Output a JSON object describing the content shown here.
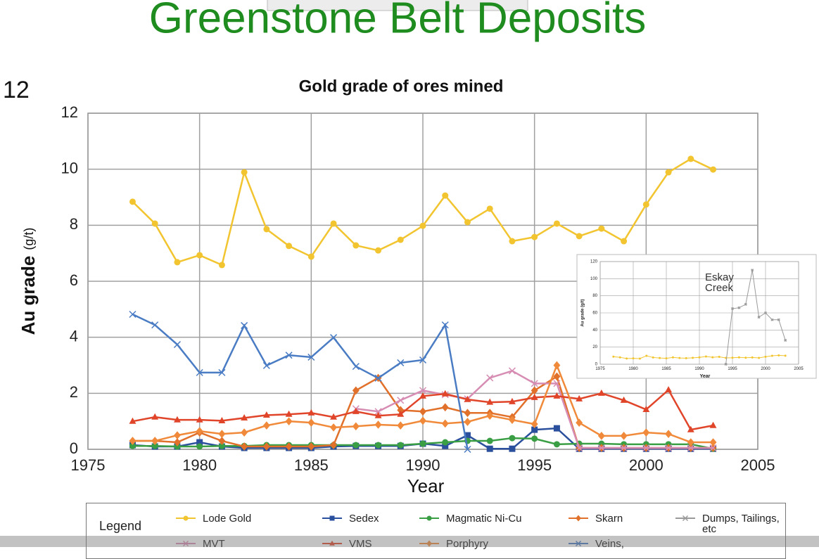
{
  "slide": {
    "title": "Greenstone Belt Deposits",
    "page_number": "12"
  },
  "chart_data": [
    {
      "type": "line",
      "title": "Gold grade of ores mined",
      "xlabel": "Year",
      "ylabel": "Au grade",
      "ylabel_unit": "(g/t)",
      "legend_title": "Legend",
      "legend_position": "bottom",
      "grid": true,
      "xlim": [
        1975,
        2005
      ],
      "xticks": [
        1975,
        1980,
        1985,
        1990,
        1995,
        2000,
        2005
      ],
      "ylim": [
        0,
        12
      ],
      "yticks": [
        0,
        2,
        4,
        6,
        8,
        10,
        12
      ],
      "x": [
        1977,
        1978,
        1979,
        1980,
        1981,
        1982,
        1983,
        1984,
        1985,
        1986,
        1987,
        1988,
        1989,
        1990,
        1991,
        1992,
        1993,
        1994,
        1995,
        1996,
        1997,
        1998,
        1999,
        2000,
        2001,
        2002,
        2003
      ],
      "series": [
        {
          "name": "Lode Gold",
          "color": "#f2c530",
          "marker": "circle",
          "values": [
            8.84,
            8.06,
            6.68,
            6.93,
            6.58,
            9.89,
            7.86,
            7.26,
            6.88,
            8.06,
            7.28,
            7.1,
            7.48,
            7.98,
            9.06,
            8.11,
            8.59,
            7.43,
            7.58,
            8.06,
            7.61,
            7.88,
            7.43,
            8.74,
            9.89,
            10.37,
            9.99
          ]
        },
        {
          "name": "Sedex",
          "color": "#2a4f9c",
          "marker": "square",
          "values": [
            0.15,
            0.1,
            0.1,
            0.25,
            0.1,
            0.05,
            0.05,
            0.05,
            0.05,
            0.1,
            0.12,
            0.12,
            0.12,
            0.2,
            0.12,
            0.5,
            0.02,
            0.02,
            0.7,
            0.75,
            0.02,
            0.02,
            0.02,
            0.02,
            0.02,
            0.02,
            0.02
          ]
        },
        {
          "name": "Magmatic Ni-Cu",
          "color": "#3a9e44",
          "marker": "circle",
          "values": [
            0.12,
            0.12,
            0.1,
            0.1,
            0.12,
            0.12,
            0.15,
            0.15,
            0.15,
            0.15,
            0.15,
            0.15,
            0.15,
            0.2,
            0.25,
            0.3,
            0.3,
            0.4,
            0.38,
            0.18,
            0.2,
            0.2,
            0.18,
            0.18,
            0.18,
            0.18,
            0.02
          ]
        },
        {
          "name": "Skarn",
          "color": "#e0702a",
          "marker": "diamond",
          "values": [
            0.3,
            0.3,
            0.25,
            0.6,
            0.3,
            0.1,
            0.1,
            0.1,
            0.1,
            0.15,
            2.1,
            2.55,
            1.4,
            1.35,
            1.5,
            1.3,
            1.3,
            1.15,
            2.1,
            2.6,
            0.05,
            0.05,
            0.05,
            0.05,
            0.05,
            0.05,
            0.05
          ]
        },
        {
          "name": "Dumps, Tailings, etc",
          "color": "#9a9a9a",
          "marker": "x",
          "values": [
            null,
            null,
            null,
            null,
            null,
            null,
            null,
            null,
            null,
            null,
            null,
            null,
            null,
            null,
            null,
            null,
            null,
            null,
            null,
            null,
            null,
            null,
            null,
            null,
            null,
            null,
            null
          ]
        },
        {
          "name": "MVT",
          "color": "#d78db3",
          "marker": "x",
          "values": [
            null,
            null,
            null,
            null,
            null,
            null,
            null,
            null,
            null,
            null,
            1.45,
            1.35,
            1.75,
            2.1,
            1.95,
            1.8,
            2.55,
            2.8,
            2.35,
            2.35,
            0.05,
            0.05,
            0.05,
            0.05,
            0.05,
            0.05,
            0.05
          ]
        },
        {
          "name": "VMS",
          "color": "#e0452a",
          "marker": "triangle",
          "values": [
            1.0,
            1.15,
            1.05,
            1.05,
            1.02,
            1.12,
            1.22,
            1.25,
            1.3,
            1.15,
            1.35,
            1.2,
            1.25,
            1.9,
            1.98,
            1.78,
            1.68,
            1.7,
            1.85,
            1.9,
            1.8,
            2.0,
            1.75,
            1.42,
            2.12,
            0.7,
            0.85
          ]
        },
        {
          "name": "Porphyry",
          "color": "#f08a3a",
          "marker": "diamond",
          "values": [
            0.3,
            0.3,
            0.5,
            0.65,
            0.55,
            0.6,
            0.85,
            1.0,
            0.95,
            0.78,
            0.82,
            0.88,
            0.85,
            1.02,
            0.92,
            0.98,
            1.2,
            1.05,
            0.9,
            3.0,
            0.95,
            0.48,
            0.48,
            0.6,
            0.55,
            0.25,
            0.25
          ]
        },
        {
          "name": "Veins,",
          "color": "#4a7cc4",
          "marker": "x",
          "values": [
            4.82,
            4.44,
            3.74,
            2.74,
            2.74,
            4.42,
            2.99,
            3.36,
            3.29,
            3.99,
            2.96,
            2.54,
            3.09,
            3.19,
            4.44,
            0.0,
            null,
            null,
            null,
            null,
            null,
            null,
            null,
            null,
            null,
            null,
            null
          ]
        }
      ]
    },
    {
      "type": "line",
      "xlabel": "Year",
      "ylabel": "Au grade (g/t)",
      "annotation": [
        "Eskay",
        "Creek"
      ],
      "grid": true,
      "xlim": [
        1975,
        2005
      ],
      "xticks": [
        1975,
        1980,
        1985,
        1990,
        1995,
        2000,
        2005
      ],
      "ylim": [
        0,
        120
      ],
      "yticks": [
        0,
        20,
        40,
        60,
        80,
        100,
        120
      ],
      "x": [
        1977,
        1978,
        1979,
        1980,
        1981,
        1982,
        1983,
        1984,
        1985,
        1986,
        1987,
        1988,
        1989,
        1990,
        1991,
        1992,
        1993,
        1994,
        1995,
        1996,
        1997,
        1998,
        1999,
        2000,
        2001,
        2002,
        2003
      ],
      "series": [
        {
          "color": "#f2c530",
          "marker": "circle",
          "values": [
            8.84,
            8.06,
            6.68,
            6.93,
            6.58,
            9.89,
            7.86,
            7.26,
            6.88,
            8.06,
            7.28,
            7.1,
            7.48,
            7.98,
            9.06,
            8.11,
            8.59,
            7.43,
            7.58,
            8.06,
            7.61,
            7.88,
            7.43,
            8.74,
            9.89,
            10.37,
            9.99
          ]
        },
        {
          "color": "#9a9a9a",
          "marker": "x",
          "values": [
            null,
            null,
            null,
            null,
            null,
            null,
            null,
            null,
            null,
            null,
            null,
            null,
            null,
            null,
            null,
            null,
            null,
            0,
            65,
            66,
            70,
            110,
            55,
            60,
            52,
            52,
            28
          ]
        }
      ]
    }
  ]
}
